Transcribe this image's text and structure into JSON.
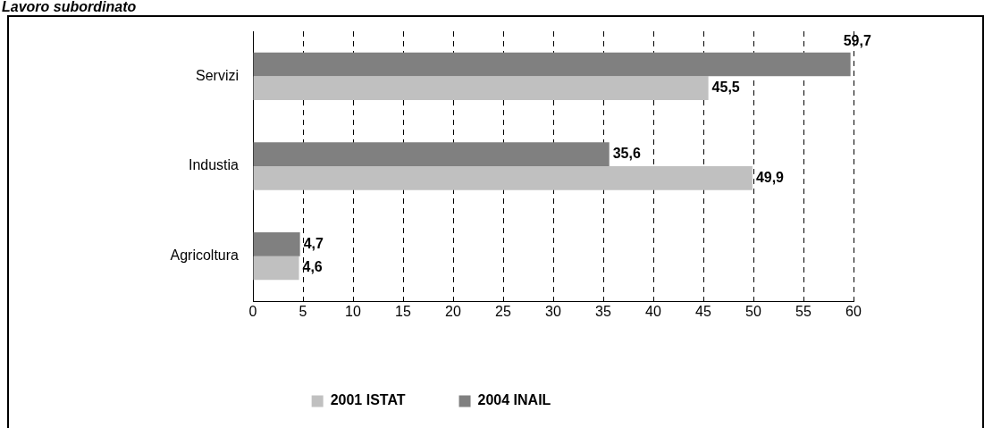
{
  "chart_data": {
    "type": "bar",
    "title": "Lavoro subordinato",
    "orientation": "horizontal",
    "categories": [
      "Servizi",
      "Industia",
      "Agricoltura"
    ],
    "series": [
      {
        "name": "2004 INAIL",
        "color": "#808080",
        "values": [
          59.7,
          35.6,
          4.7
        ],
        "value_labels": [
          "59,7",
          "35,6",
          "4,7"
        ]
      },
      {
        "name": "2001 ISTAT",
        "color": "#c0c0c0",
        "values": [
          45.5,
          49.9,
          4.6
        ],
        "value_labels": [
          "45,5",
          "49,9",
          "4,6"
        ]
      }
    ],
    "xlim": [
      0,
      60
    ],
    "xticks": [
      0,
      5,
      10,
      15,
      20,
      25,
      30,
      35,
      40,
      45,
      50,
      55,
      60
    ],
    "grid": "x",
    "legend": "bottom"
  }
}
